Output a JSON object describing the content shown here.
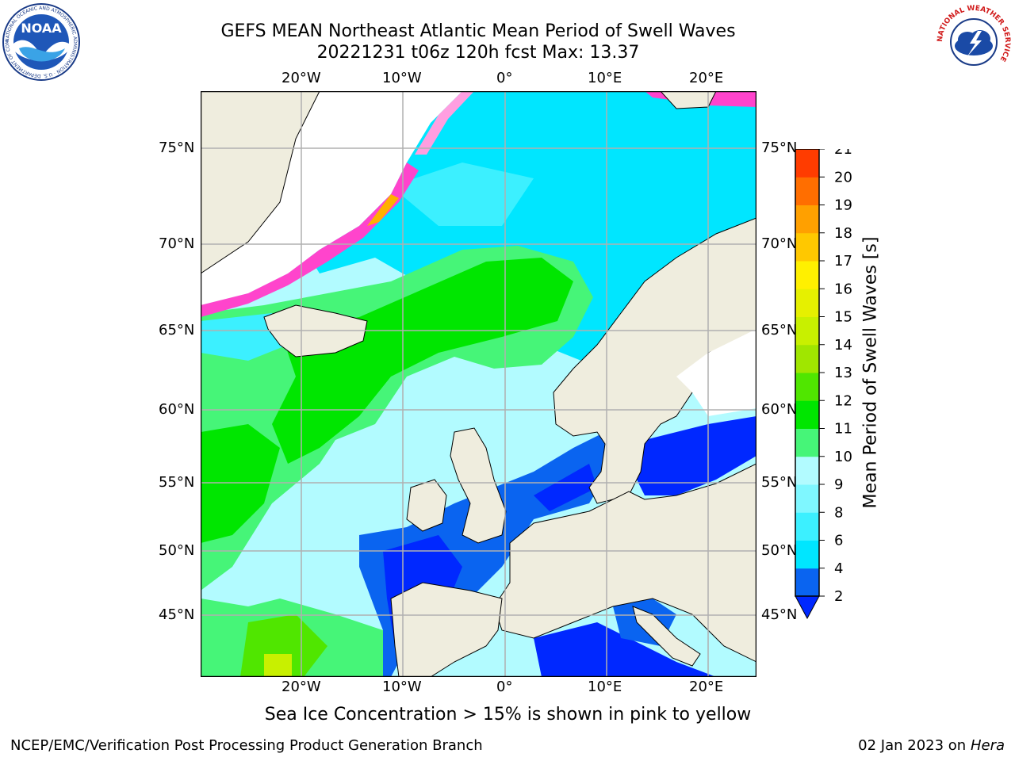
{
  "header": {
    "title_line1": "GEFS MEAN Northeast Atlantic Mean Period of Swell Waves",
    "title_line2": "20221231 t06z 120h fcst   Max: 13.37"
  },
  "logos": {
    "noaa_text": "NOAA",
    "noaa_ring_text": "NATIONAL OCEANIC AND ATMOSPHERIC ADMINISTRATION · U.S. DEPARTMENT OF COMMERCE",
    "nws_ring_text": "NATIONAL WEATHER SERVICE"
  },
  "map": {
    "lon_labels": [
      "20°W",
      "10°W",
      "0°",
      "10°E",
      "20°E"
    ],
    "lat_labels": [
      "75°N",
      "70°N",
      "65°N",
      "60°N",
      "55°N",
      "50°N",
      "45°N"
    ]
  },
  "colorbar": {
    "title": "Mean Period of Swell Waves [s]",
    "ticks": [
      "2",
      "4",
      "6",
      "8",
      "9",
      "10",
      "11",
      "12",
      "13",
      "14",
      "15",
      "16",
      "17",
      "18",
      "19",
      "20",
      "21"
    ],
    "colors": [
      "#0a64f0",
      "#00e6ff",
      "#3cf0ff",
      "#7ff7ff",
      "#b2fbff",
      "#46f578",
      "#00e600",
      "#50e600",
      "#a0e600",
      "#c8f000",
      "#e6f000",
      "#fff000",
      "#ffc800",
      "#ffa000",
      "#ff6e00",
      "#ff3c00",
      "#ff0000"
    ],
    "extend_color": "#0028ff"
  },
  "note": "Sea Ice Concentration > 15% is shown in pink to yellow",
  "footer": {
    "left": "NCEP/EMC/Verification Post Processing Product Generation Branch",
    "right_date": "02 Jan 2023 on ",
    "right_host": "Hera"
  }
}
